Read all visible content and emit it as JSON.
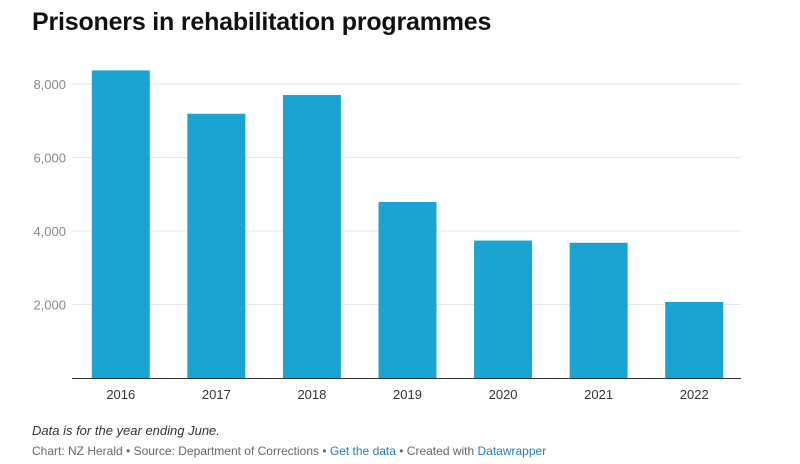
{
  "chart_data": {
    "type": "bar",
    "title": "Prisoners in rehabilitation programmes",
    "categories": [
      "2016",
      "2017",
      "2018",
      "2019",
      "2020",
      "2021",
      "2022"
    ],
    "values": [
      8370,
      7190,
      7700,
      4790,
      3740,
      3680,
      2070
    ],
    "ylim": [
      0,
      8000
    ],
    "yticks": [
      2000,
      4000,
      6000,
      8000
    ],
    "ytick_labels": [
      "2,000",
      "4,000",
      "6,000",
      "8,000"
    ],
    "xlabel": "",
    "ylabel": "",
    "bar_color": "#1ba3d1",
    "grid": true
  },
  "notes": {
    "caption": "Data is for the year ending June."
  },
  "footer": {
    "chart_credit": "Chart: NZ Herald",
    "sep1": " • ",
    "source": "Source: Department of Corrections",
    "sep2": " • ",
    "get_data_link": "Get the data",
    "sep3": " • ",
    "created_with": "Created with ",
    "datawrapper_link": "Datawrapper"
  }
}
